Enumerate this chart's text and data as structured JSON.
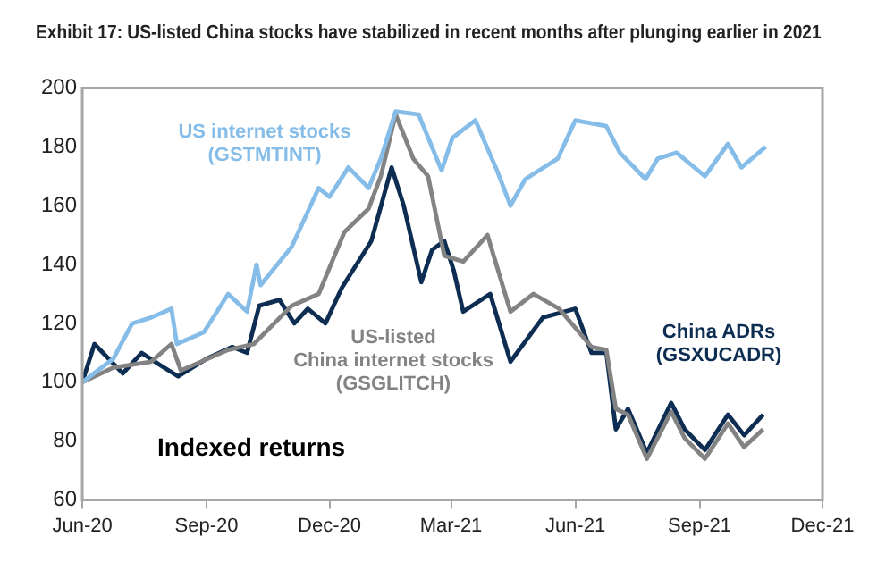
{
  "chart_data": {
    "type": "line",
    "title": "Exhibit 17: US-listed China stocks have stabilized in recent months after plunging earlier in 2021",
    "annotations": [
      "Indexed returns"
    ],
    "xlim": [
      "2020-06-01",
      "2021-12-01"
    ],
    "xticks": [
      {
        "value": "2020-06-01",
        "label": "Jun-20"
      },
      {
        "value": "2020-09-01",
        "label": "Sep-20"
      },
      {
        "value": "2020-12-01",
        "label": "Dec-20"
      },
      {
        "value": "2021-03-01",
        "label": "Mar-21"
      },
      {
        "value": "2021-06-01",
        "label": "Jun-21"
      },
      {
        "value": "2021-09-01",
        "label": "Sep-21"
      },
      {
        "value": "2021-12-01",
        "label": "Dec-21"
      }
    ],
    "ylim": [
      60,
      200
    ],
    "yticks": [
      60,
      80,
      100,
      120,
      140,
      160,
      180,
      200
    ],
    "grid": false,
    "legend": false,
    "marker": "none",
    "line_style": "solid",
    "series": [
      {
        "name": "US internet stocks\n(GSTMTINT)",
        "color": "#86bde8",
        "x": [
          "2020-06-01",
          "2020-06-24",
          "2020-07-08",
          "2020-07-22",
          "2020-08-06",
          "2020-08-10",
          "2020-08-30",
          "2020-09-17",
          "2020-10-01",
          "2020-10-08",
          "2020-10-11",
          "2020-11-03",
          "2020-11-23",
          "2020-12-01",
          "2020-12-15",
          "2020-12-30",
          "2021-01-08",
          "2021-01-19",
          "2021-02-05",
          "2021-02-22",
          "2021-03-02",
          "2021-03-19",
          "2021-04-04",
          "2021-04-14",
          "2021-04-25",
          "2021-05-19",
          "2021-06-01",
          "2021-06-24",
          "2021-07-04",
          "2021-07-23",
          "2021-08-01",
          "2021-08-15",
          "2021-09-05",
          "2021-09-22",
          "2021-10-02",
          "2021-10-20"
        ],
        "values": [
          100,
          108,
          120,
          122,
          125,
          113,
          117,
          130,
          124,
          140,
          133,
          146,
          166,
          163,
          173,
          166,
          176,
          192,
          191,
          172,
          183,
          189,
          172,
          160,
          169,
          176,
          189,
          187,
          178,
          169,
          176,
          178,
          170,
          181,
          173,
          180
        ]
      },
      {
        "name": "US-listed\nChina internet stocks\n(GSGLITCH)",
        "color": "#838383",
        "x": [
          "2020-06-01",
          "2020-06-24",
          "2020-07-22",
          "2020-08-06",
          "2020-08-13",
          "2020-09-17",
          "2020-10-06",
          "2020-11-03",
          "2020-11-23",
          "2020-12-12",
          "2020-12-30",
          "2021-01-08",
          "2021-01-19",
          "2021-02-01",
          "2021-02-12",
          "2021-02-24",
          "2021-03-10",
          "2021-03-28",
          "2021-04-14",
          "2021-05-01",
          "2021-05-20",
          "2021-06-13",
          "2021-06-24",
          "2021-07-01",
          "2021-07-10",
          "2021-07-24",
          "2021-08-11",
          "2021-08-21",
          "2021-09-05",
          "2021-09-22",
          "2021-10-04",
          "2021-10-18"
        ],
        "values": [
          100,
          105,
          107,
          113,
          104,
          111,
          113,
          126,
          130,
          151,
          159,
          170,
          191,
          176,
          170,
          143,
          141,
          150,
          124,
          130,
          125,
          112,
          111,
          91,
          89,
          74,
          90,
          81,
          74,
          86,
          78,
          84
        ]
      },
      {
        "name": "China ADRs\n(GSXUCADR)",
        "color": "#0d2d52",
        "x": [
          "2020-06-01",
          "2020-06-10",
          "2020-07-01",
          "2020-07-15",
          "2020-07-28",
          "2020-08-11",
          "2020-09-01",
          "2020-09-20",
          "2020-10-01",
          "2020-10-10",
          "2020-10-25",
          "2020-11-05",
          "2020-11-15",
          "2020-11-28",
          "2020-12-10",
          "2021-01-01",
          "2021-01-16",
          "2021-01-25",
          "2021-02-07",
          "2021-02-15",
          "2021-02-24",
          "2021-03-03",
          "2021-03-10",
          "2021-03-30",
          "2021-04-14",
          "2021-05-08",
          "2021-06-01",
          "2021-06-13",
          "2021-06-24",
          "2021-07-01",
          "2021-07-10",
          "2021-07-24",
          "2021-08-11",
          "2021-08-21",
          "2021-09-05",
          "2021-09-22",
          "2021-10-04",
          "2021-10-18"
        ],
        "values": [
          100,
          113,
          103,
          110,
          106,
          102,
          108,
          112,
          110,
          126,
          128,
          120,
          125,
          120,
          132,
          148,
          173,
          160,
          134,
          145,
          148,
          138,
          124,
          130,
          107,
          122,
          125,
          110,
          110,
          84,
          91,
          76,
          93,
          84,
          77,
          89,
          82,
          89
        ]
      }
    ]
  }
}
